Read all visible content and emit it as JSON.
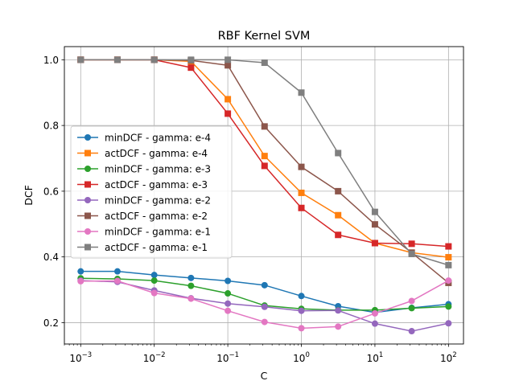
{
  "chart_data": {
    "type": "line",
    "title": "RBF Kernel SVM",
    "xlabel": "C",
    "ylabel": "DCF",
    "xscale": "log",
    "xlim": [
      0.0006,
      160
    ],
    "ylim": [
      0.135,
      1.04
    ],
    "grid": true,
    "legend_position": "center-left",
    "x": [
      0.001,
      0.00316,
      0.01,
      0.0316,
      0.1,
      0.316,
      1,
      3.16,
      10,
      31.6,
      100
    ],
    "xticks": [
      {
        "value": 0.001,
        "base": "10",
        "exp": "−3"
      },
      {
        "value": 0.01,
        "base": "10",
        "exp": "−2"
      },
      {
        "value": 0.1,
        "base": "10",
        "exp": "−1"
      },
      {
        "value": 1,
        "base": "10",
        "exp": "0"
      },
      {
        "value": 10,
        "base": "10",
        "exp": "1"
      },
      {
        "value": 100,
        "base": "10",
        "exp": "2"
      }
    ],
    "yticks": [
      {
        "value": 0.2,
        "label": "0.2"
      },
      {
        "value": 0.4,
        "label": "0.4"
      },
      {
        "value": 0.6,
        "label": "0.6"
      },
      {
        "value": 0.8,
        "label": "0.8"
      },
      {
        "value": 1.0,
        "label": "1.0"
      }
    ],
    "series": [
      {
        "name": "minDCF - gamma: e-4",
        "color": "#1f77b4",
        "marker": "circle",
        "values": [
          0.356,
          0.356,
          0.345,
          0.336,
          0.327,
          0.314,
          0.281,
          0.25,
          0.231,
          0.245,
          0.256
        ]
      },
      {
        "name": "actDCF - gamma: e-4",
        "color": "#ff7f0e",
        "marker": "square",
        "values": [
          1.0,
          1.0,
          1.0,
          0.995,
          0.88,
          0.707,
          0.595,
          0.527,
          0.442,
          0.413,
          0.399
        ]
      },
      {
        "name": "minDCF - gamma: e-3",
        "color": "#2ca02c",
        "marker": "circle",
        "values": [
          0.335,
          0.333,
          0.328,
          0.312,
          0.289,
          0.252,
          0.242,
          0.238,
          0.238,
          0.244,
          0.249
        ]
      },
      {
        "name": "actDCF - gamma: e-3",
        "color": "#d62728",
        "marker": "square",
        "values": [
          1.0,
          1.0,
          1.0,
          0.976,
          0.836,
          0.677,
          0.549,
          0.467,
          0.442,
          0.44,
          0.432
        ]
      },
      {
        "name": "minDCF - gamma: e-2",
        "color": "#9467bd",
        "marker": "circle",
        "values": [
          0.328,
          0.324,
          0.298,
          0.274,
          0.258,
          0.248,
          0.236,
          0.237,
          0.197,
          0.174,
          0.198
        ]
      },
      {
        "name": "actDCF - gamma: e-2",
        "color": "#8c564b",
        "marker": "square",
        "values": [
          1.0,
          1.0,
          1.0,
          0.998,
          0.983,
          0.797,
          0.674,
          0.6,
          0.499,
          0.413,
          0.321
        ]
      },
      {
        "name": "minDCF - gamma: e-1",
        "color": "#e377c2",
        "marker": "circle",
        "values": [
          0.326,
          0.327,
          0.29,
          0.273,
          0.236,
          0.202,
          0.183,
          0.188,
          0.228,
          0.266,
          0.328
        ]
      },
      {
        "name": "actDCF - gamma: e-1",
        "color": "#7f7f7f",
        "marker": "square",
        "values": [
          1.0,
          1.0,
          1.0,
          1.0,
          1.0,
          0.991,
          0.9,
          0.716,
          0.537,
          0.409,
          0.375
        ]
      }
    ]
  }
}
